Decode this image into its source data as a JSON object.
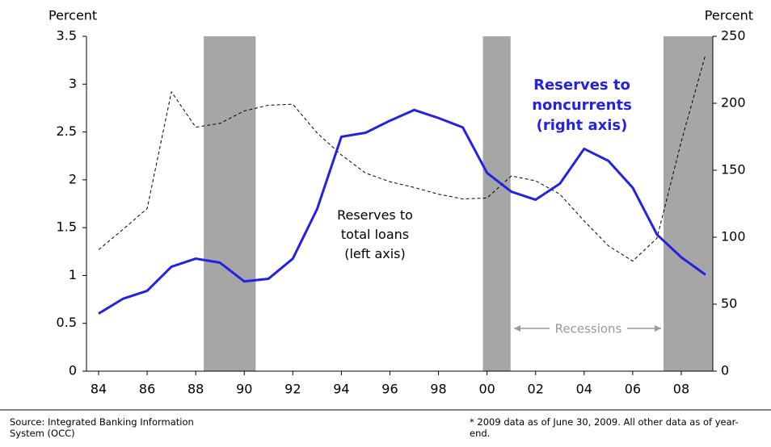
{
  "chart_data": {
    "type": "line",
    "y_axis_label": "Percent",
    "y2_axis_label": "Percent",
    "x": [
      1984,
      1985,
      1986,
      1987,
      1988,
      1989,
      1990,
      1991,
      1992,
      1993,
      1994,
      1995,
      1996,
      1997,
      1998,
      1999,
      2000,
      2001,
      2002,
      2003,
      2004,
      2005,
      2006,
      2007,
      2008,
      2009
    ],
    "xlim": [
      1983.5,
      2009.3
    ],
    "xticks": [
      {
        "value": 1984,
        "label": "84"
      },
      {
        "value": 1986,
        "label": "86"
      },
      {
        "value": 1988,
        "label": "88"
      },
      {
        "value": 1990,
        "label": "90"
      },
      {
        "value": 1992,
        "label": "92"
      },
      {
        "value": 1994,
        "label": "94"
      },
      {
        "value": 1996,
        "label": "96"
      },
      {
        "value": 1998,
        "label": "98"
      },
      {
        "value": 2000,
        "label": "00"
      },
      {
        "value": 2002,
        "label": "02"
      },
      {
        "value": 2004,
        "label": "04"
      },
      {
        "value": 2006,
        "label": "06"
      },
      {
        "value": 2008,
        "label": "08"
      }
    ],
    "ylim": [
      0,
      3.5
    ],
    "yticks": [
      0,
      0.5,
      1,
      1.5,
      2,
      2.5,
      3,
      3.5
    ],
    "y2lim": [
      0,
      250
    ],
    "y2ticks": [
      0,
      50,
      100,
      150,
      200,
      250
    ],
    "series": [
      {
        "name": "Reserves to total loans (left axis)",
        "color": "#000000",
        "style": "dashed",
        "values": [
          1.27,
          1.48,
          1.7,
          2.92,
          2.55,
          2.59,
          2.72,
          2.78,
          2.79,
          2.49,
          2.26,
          2.07,
          1.98,
          1.92,
          1.85,
          1.8,
          1.81,
          2.04,
          1.99,
          1.85,
          1.57,
          1.31,
          1.15,
          1.39,
          2.4,
          3.31
        ]
      },
      {
        "name": "Reserves to noncurrents (right axis)",
        "color": "#2222e6",
        "style": "solid",
        "axis": "y2",
        "values": [
          43,
          54,
          60,
          78,
          84,
          81,
          67,
          69,
          84,
          121,
          175,
          178,
          187,
          195,
          189,
          182,
          148,
          134,
          128,
          140,
          166,
          157,
          137,
          102,
          85,
          72
        ]
      }
    ],
    "recessions_label": "Recessions",
    "recessions": [
      [
        1988.33,
        1990.47
      ],
      [
        1999.83,
        2000.97
      ],
      [
        2007.27,
        2009.3
      ]
    ],
    "recession_color": "#a6a6a6",
    "source": "Source: Integrated Banking Information System (OCC)",
    "footnote": "* 2009 data as of June 30, 2009.  All other data as of year-end."
  }
}
